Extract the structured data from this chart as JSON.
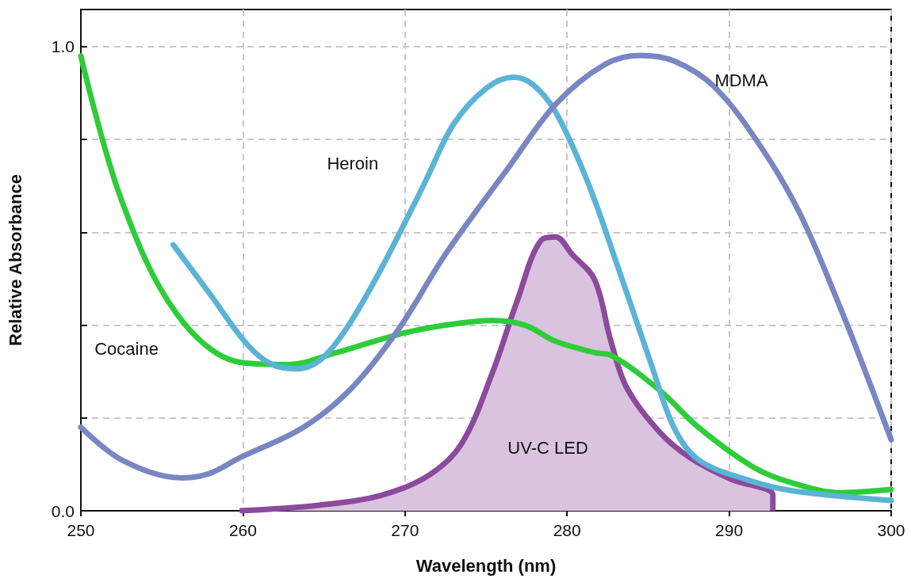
{
  "chart_data": {
    "type": "line",
    "xlabel": "Wavelength (nm)",
    "ylabel": "Relative Absorbance",
    "xlim": [
      250,
      300
    ],
    "xticks": [
      250,
      260,
      270,
      280,
      290,
      300
    ],
    "ylim": [
      0,
      1.08
    ],
    "yticks": [
      {
        "value": 0,
        "label": "0.0"
      },
      {
        "value": 0.2,
        "label": null
      },
      {
        "value": 0.4,
        "label": null
      },
      {
        "value": 0.6,
        "label": null
      },
      {
        "value": 0.8,
        "label": null
      },
      {
        "value": 1,
        "label": "1.0"
      }
    ],
    "grid": true,
    "marker": "none",
    "line_style": "solid",
    "legend": false,
    "series": [
      {
        "name": "Cocaine",
        "color": "#2fcc3a",
        "x": [
          250,
          252.5,
          255.9,
          259.8,
          262.8,
          265.7,
          269.6,
          272.5,
          275.4,
          277.4,
          279.3,
          281.8,
          282.7,
          285.7,
          288.1,
          291.5,
          293.9,
          296.9,
          300
        ],
        "values": [
          0.98,
          0.67,
          0.425,
          0.32,
          0.315,
          0.34,
          0.38,
          0.4,
          0.41,
          0.4,
          0.365,
          0.34,
          0.335,
          0.26,
          0.18,
          0.094,
          0.06,
          0.039,
          0.046
        ]
      },
      {
        "name": "Heroin",
        "color": "#5bb3d6",
        "x": [
          255.7,
          257.9,
          260.3,
          261.8,
          263.3,
          264.7,
          266.2,
          268.2,
          270.6,
          271.4,
          273,
          275,
          276.7,
          277.9,
          279.3,
          281.3,
          283.2,
          285.2,
          286.6,
          288.1,
          291,
          293.9,
          300
        ],
        "values": [
          0.573,
          0.47,
          0.357,
          0.315,
          0.306,
          0.323,
          0.383,
          0.5,
          0.663,
          0.72,
          0.833,
          0.91,
          0.934,
          0.918,
          0.859,
          0.706,
          0.519,
          0.315,
          0.179,
          0.11,
          0.068,
          0.043,
          0.022
        ]
      },
      {
        "name": "MDMA",
        "color": "#7a86c2",
        "x": [
          250,
          252.5,
          256.2,
          257.9,
          259.8,
          263.7,
          266.7,
          269.6,
          272.5,
          276.4,
          279.3,
          282.3,
          284.5,
          286.6,
          289.1,
          292,
          294.4,
          296.9,
          298.8,
          300
        ],
        "values": [
          0.18,
          0.11,
          0.071,
          0.08,
          0.114,
          0.179,
          0.264,
          0.391,
          0.553,
          0.74,
          0.876,
          0.961,
          0.981,
          0.969,
          0.913,
          0.782,
          0.638,
          0.434,
          0.264,
          0.153
        ]
      },
      {
        "name": "UV-C LED",
        "type": "area",
        "color": "#8b4a9c",
        "x": [
          259.8,
          264.7,
          268.6,
          271.5,
          273.5,
          275.4,
          276.9,
          278.4,
          279.3,
          280.3,
          281.7,
          282.7,
          283.7,
          285.7,
          287.6,
          290.1,
          292.7,
          292.7
        ],
        "values": [
          0,
          0.012,
          0.034,
          0.077,
          0.145,
          0.298,
          0.45,
          0.583,
          0.59,
          0.553,
          0.498,
          0.366,
          0.264,
          0.17,
          0.114,
          0.068,
          0.034,
          0
        ]
      }
    ]
  }
}
